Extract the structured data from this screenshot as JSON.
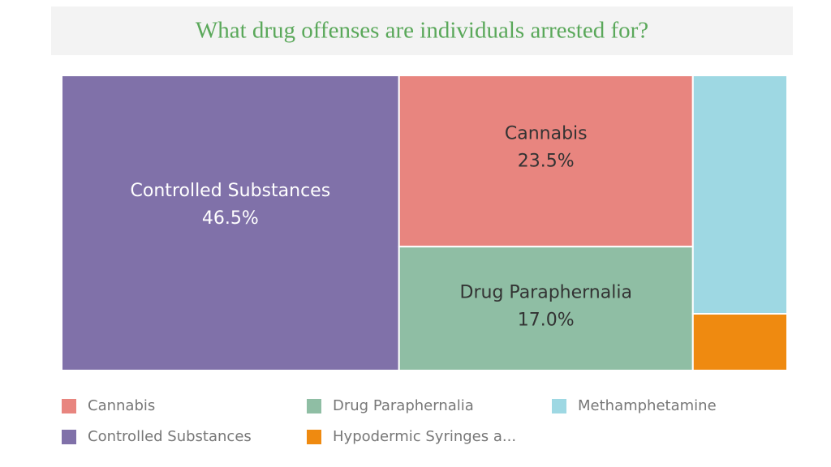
{
  "chart_data": {
    "type": "treemap",
    "title": "What drug offenses are individuals arrested for?",
    "categories": [
      "Controlled Substances",
      "Cannabis",
      "Drug Paraphernalia",
      "Methamphetamine",
      "Hypodermic Syringes a..."
    ],
    "values": [
      46.5,
      23.5,
      17.0,
      10.5,
      2.5
    ],
    "value_labels": [
      "46.5%",
      "23.5%",
      "17.0%",
      null,
      null
    ],
    "colors": [
      "#8071a9",
      "#e8857f",
      "#8fbea4",
      "#9ed8e3",
      "#ef8a10"
    ]
  }
}
